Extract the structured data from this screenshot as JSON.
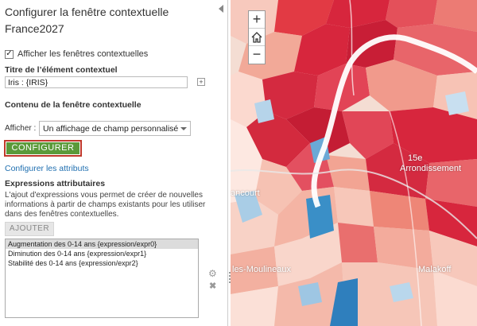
{
  "panel": {
    "title": "Configurer la fenêtre contextuelle France2027",
    "show_popups_label": "Afficher les fenêtres contextuelles",
    "show_popups_checked": true,
    "popup_title_heading": "Titre de l’élément contextuel",
    "popup_title_value": "Iris : {IRIS}",
    "popup_content_heading": "Contenu de la fenêtre contextuelle",
    "display_label": "Afficher :",
    "display_selected": "Un affichage de champ personnalisé",
    "configure_button": "CONFIGURER",
    "configure_attributes_link": "Configurer les attributs",
    "expressions_heading": "Expressions attributaires",
    "expressions_description": "L'ajout d'expressions vous permet de créer de nouvelles informations à partir de champs existants pour les utiliser dans des fenêtres contextuelles.",
    "add_button": "AJOUTER",
    "expressions": [
      "Augmentation des 0-14 ans {expression/expr0}",
      "Diminution des 0-14 ans {expression/expr1}",
      "Stabilité des 0-14 ans {expression/expr2}"
    ]
  },
  "map": {
    "zoom_in": "+",
    "zoom_out": "−",
    "labels": {
      "arr_line1": "15e",
      "arr_line2": "Arrondissement",
      "vancourt": "ancourt",
      "moulineaux": "les-Moulineaux",
      "malakoff": "Malakoff"
    }
  },
  "colors": {
    "configure_button_bg": "#5a9a3a",
    "configure_button_border": "#c0392b",
    "link": "#1f6fb0",
    "map_dark_red": "#d7263d",
    "map_light_red": "#f08a7a",
    "map_blue": "#3a8fc7"
  }
}
